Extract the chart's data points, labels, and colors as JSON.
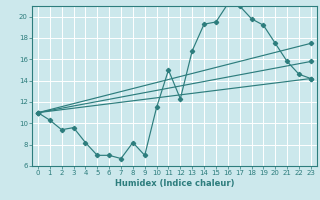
{
  "xlabel": "Humidex (Indice chaleur)",
  "bg_color": "#cce8ec",
  "grid_color": "#ffffff",
  "line_color": "#2d7d7d",
  "xlim": [
    -0.5,
    23.5
  ],
  "ylim": [
    6,
    21
  ],
  "yticks": [
    6,
    8,
    10,
    12,
    14,
    16,
    18,
    20
  ],
  "xticks": [
    0,
    1,
    2,
    3,
    4,
    5,
    6,
    7,
    8,
    9,
    10,
    11,
    12,
    13,
    14,
    15,
    16,
    17,
    18,
    19,
    20,
    21,
    22,
    23
  ],
  "line1_x": [
    0,
    1,
    2,
    3,
    4,
    5,
    6,
    7,
    8,
    9,
    10,
    11,
    12,
    13,
    14,
    15,
    16,
    17,
    18,
    19,
    20,
    21,
    22,
    23
  ],
  "line1_y": [
    11,
    10.3,
    9.4,
    9.6,
    8.2,
    7.0,
    7.0,
    6.7,
    8.2,
    7.0,
    11.5,
    15.0,
    12.3,
    16.8,
    19.3,
    19.5,
    21.2,
    21.0,
    19.8,
    19.2,
    17.5,
    15.8,
    14.6,
    14.2
  ],
  "line2_x": [
    0,
    23
  ],
  "line2_y": [
    11,
    17.5
  ],
  "line3_x": [
    0,
    23
  ],
  "line3_y": [
    11,
    15.8
  ],
  "line4_x": [
    0,
    23
  ],
  "line4_y": [
    11,
    14.2
  ]
}
